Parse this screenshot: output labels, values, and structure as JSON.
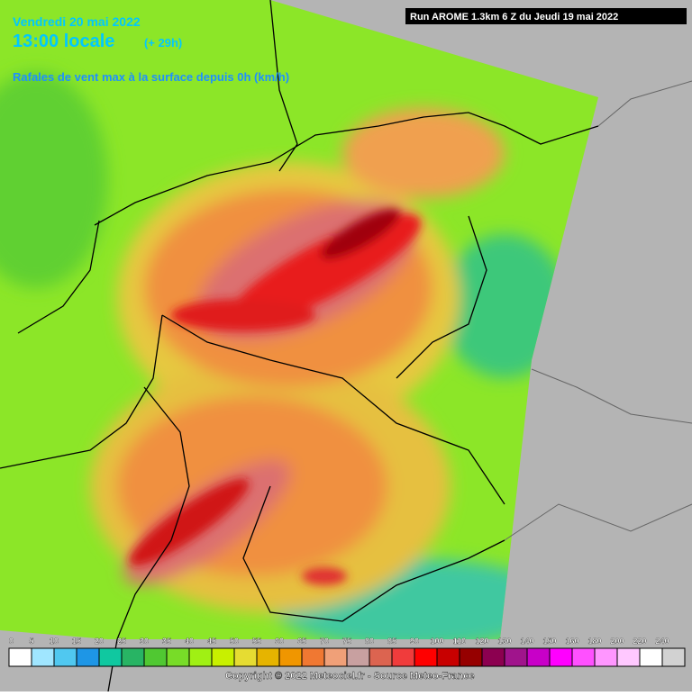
{
  "header": {
    "date": "Vendredi 20 mai 2022",
    "time": "13:00 locale",
    "lead": "(+ 29h)",
    "parameter": "Rafales de vent max à la surface depuis 0h (km/h)",
    "run": "Run AROME 1.3km 6 Z du Jeudi 19 mai 2022"
  },
  "legend": {
    "items": [
      {
        "value": 0,
        "color": "#ffffff"
      },
      {
        "value": 5,
        "color": "#a0e6ff"
      },
      {
        "value": 10,
        "color": "#50c8f0"
      },
      {
        "value": 15,
        "color": "#1e96e6"
      },
      {
        "value": 20,
        "color": "#10c8a0"
      },
      {
        "value": 25,
        "color": "#28b464"
      },
      {
        "value": 30,
        "color": "#50c832"
      },
      {
        "value": 35,
        "color": "#78dc28"
      },
      {
        "value": 40,
        "color": "#a0f014"
      },
      {
        "value": 45,
        "color": "#c8f000"
      },
      {
        "value": 50,
        "color": "#e6dc32"
      },
      {
        "value": 55,
        "color": "#e6b400"
      },
      {
        "value": 60,
        "color": "#f09600"
      },
      {
        "value": 65,
        "color": "#f07832"
      },
      {
        "value": 70,
        "color": "#f0a078"
      },
      {
        "value": 75,
        "color": "#c8a0a0"
      },
      {
        "value": 80,
        "color": "#dc6450"
      },
      {
        "value": 85,
        "color": "#f03c3c"
      },
      {
        "value": 90,
        "color": "#ff0000"
      },
      {
        "value": 100,
        "color": "#c80000"
      },
      {
        "value": 110,
        "color": "#960000"
      },
      {
        "value": 120,
        "color": "#8c0050"
      },
      {
        "value": 130,
        "color": "#a0148c"
      },
      {
        "value": 140,
        "color": "#c800c8"
      },
      {
        "value": 150,
        "color": "#ff00ff"
      },
      {
        "value": 160,
        "color": "#ff50ff"
      },
      {
        "value": 180,
        "color": "#ff96ff"
      },
      {
        "value": 200,
        "color": "#ffc8ff"
      },
      {
        "value": 220,
        "color": "#ffffff"
      },
      {
        "value": 240,
        "color": "#d2d2d2"
      }
    ]
  },
  "footer": {
    "copyright": "Copyright © 2022 Meteociel.fr - Source Meteo-France"
  }
}
